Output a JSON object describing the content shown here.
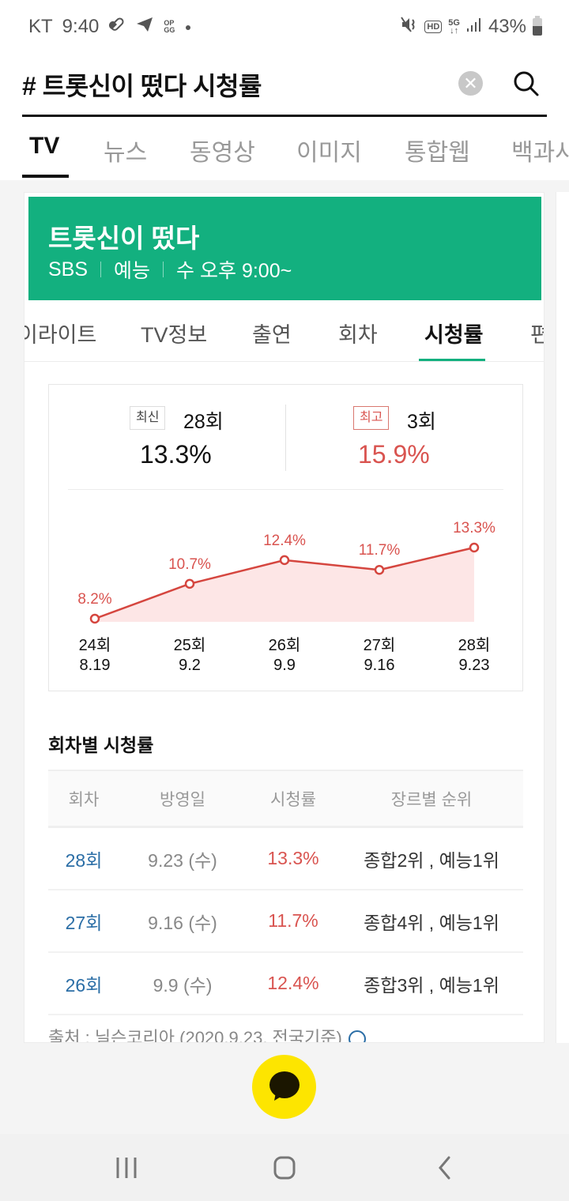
{
  "status_bar": {
    "carrier": "KT",
    "time": "9:40",
    "left_icons": [
      "pill-icon",
      "telegram-icon",
      "opgg-icon",
      "dot-icon"
    ],
    "right_icons": [
      "mute-icon",
      "hd-voice-icon",
      "5g-icon",
      "signal-icon"
    ],
    "battery": "43%"
  },
  "search": {
    "query": "# 트롯신이 떴다 시청률",
    "clear_icon": "clear-icon",
    "search_icon": "search-icon"
  },
  "tabs": [
    {
      "label": "TV",
      "active": true
    },
    {
      "label": "뉴스"
    },
    {
      "label": "동영상"
    },
    {
      "label": "이미지"
    },
    {
      "label": "통합웹"
    },
    {
      "label": "백과사"
    }
  ],
  "show": {
    "title": "트롯신이 떴다",
    "channel": "SBS",
    "genre": "예능",
    "schedule": "수 오후 9:00~",
    "header_color": "#13b07f"
  },
  "sub_tabs": [
    {
      "label": "이라이트"
    },
    {
      "label": "TV정보"
    },
    {
      "label": "출연"
    },
    {
      "label": "회차"
    },
    {
      "label": "시청률",
      "active": true
    },
    {
      "label": "편"
    }
  ],
  "summary": {
    "latest": {
      "tag": "최신",
      "episode": "28회",
      "rating": "13.3%"
    },
    "best": {
      "tag": "최고",
      "episode": "3회",
      "rating": "15.9%"
    }
  },
  "chart_data": {
    "type": "line",
    "title": "",
    "categories": [
      "24회",
      "25회",
      "26회",
      "27회",
      "28회"
    ],
    "dates": [
      "8.19",
      "9.2",
      "9.9",
      "9.16",
      "9.23"
    ],
    "values": [
      8.2,
      10.7,
      12.4,
      11.7,
      13.3
    ],
    "value_labels": [
      "8.2%",
      "10.7%",
      "12.4%",
      "11.7%",
      "13.3%"
    ],
    "xlabel": "",
    "ylabel": "시청률",
    "area_fill": true,
    "line_color": "#d5463f",
    "fill_color": "#fde6e6"
  },
  "table": {
    "title": "회차별 시청률",
    "headers": [
      "회차",
      "방영일",
      "시청률",
      "장르별 순위"
    ],
    "rows": [
      {
        "episode": "28회",
        "date": "9.23 (수)",
        "rating": "13.3%",
        "rank": "종합2위 , 예능1위"
      },
      {
        "episode": "27회",
        "date": "9.16 (수)",
        "rating": "11.7%",
        "rank": "종합4위 , 예능1위"
      },
      {
        "episode": "26회",
        "date": "9.9 (수)",
        "rating": "12.4%",
        "rank": "종합3위 , 예능1위"
      }
    ],
    "source": "출처 : 닐슨코리아 (2020.9.23, 전국기준)"
  },
  "fab": {
    "icon": "kakao-talk-icon",
    "color": "#fde500"
  },
  "navbar": {
    "icons": [
      "recent-apps-icon",
      "home-icon",
      "back-icon"
    ]
  }
}
